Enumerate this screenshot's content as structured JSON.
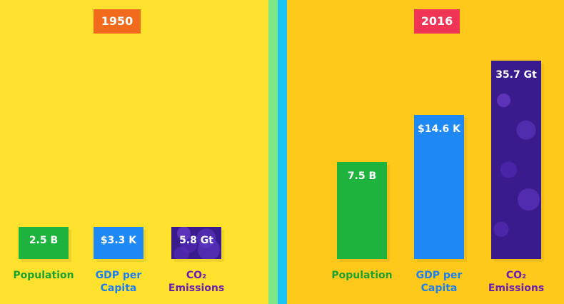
{
  "chart_data": [
    {
      "type": "bar",
      "title": "1950",
      "categories": [
        "Population",
        "GDP per Capita",
        "CO₂ Emissions"
      ],
      "values": [
        2.5,
        3.3,
        5.8
      ],
      "units": [
        "B",
        "K",
        "Gt"
      ],
      "data_labels": [
        "2.5 B",
        "$3.3 K",
        "5.8 Gt"
      ],
      "category_lines": [
        [
          "Population"
        ],
        [
          "GDP per",
          "Capita"
        ],
        [
          "CO₂",
          "Emissions"
        ]
      ],
      "colors": [
        "#1db33c",
        "#1e88f5",
        "#3a1b8e"
      ],
      "label_colors": [
        "#1aa22f",
        "#1a7ff0",
        "#6a1fb0"
      ],
      "badge_color": "#f26b1d",
      "background": "#fde12d"
    },
    {
      "type": "bar",
      "title": "2016",
      "categories": [
        "Population",
        "GDP per Capita",
        "CO₂ Emissions"
      ],
      "values": [
        7.5,
        14.6,
        35.7
      ],
      "units": [
        "B",
        "K",
        "Gt"
      ],
      "data_labels": [
        "7.5 B",
        "$14.6 K",
        "35.7 Gt"
      ],
      "category_lines": [
        [
          "Population"
        ],
        [
          "GDP per",
          "Capita"
        ],
        [
          "CO₂",
          "Emissions"
        ]
      ],
      "colors": [
        "#1db33c",
        "#1e88f5",
        "#3a1b8e"
      ],
      "label_colors": [
        "#1aa22f",
        "#1a7ff0",
        "#6a1fb0"
      ],
      "badge_color": "#ef3455",
      "background": "#fec91b"
    }
  ]
}
